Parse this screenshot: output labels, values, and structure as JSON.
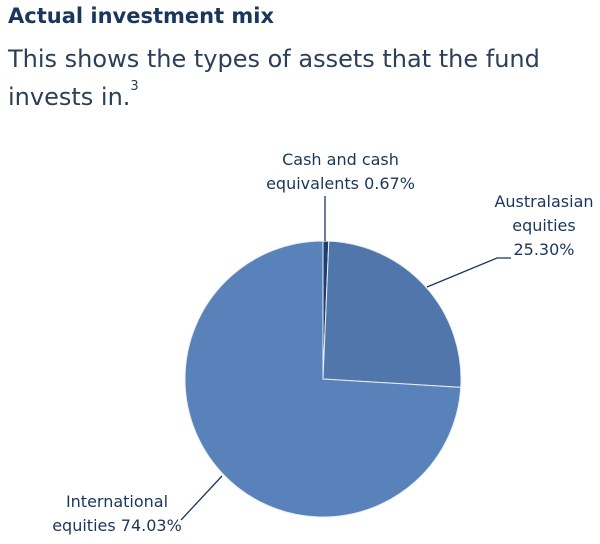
{
  "chart_data": {
    "type": "pie",
    "title": "Actual investment mix",
    "subtitle": "This shows the types of assets that the fund invests in.",
    "subtitle_footnote": "3",
    "categories": [
      "Cash and cash equivalents",
      "Australasian equities",
      "International equities"
    ],
    "values": [
      0.67,
      25.3,
      74.03
    ],
    "value_labels": [
      "0.67%",
      "25.30%",
      "74.03%"
    ],
    "colors": [
      "#1d3f6e",
      "#5176ab",
      "#5a82ba"
    ]
  }
}
